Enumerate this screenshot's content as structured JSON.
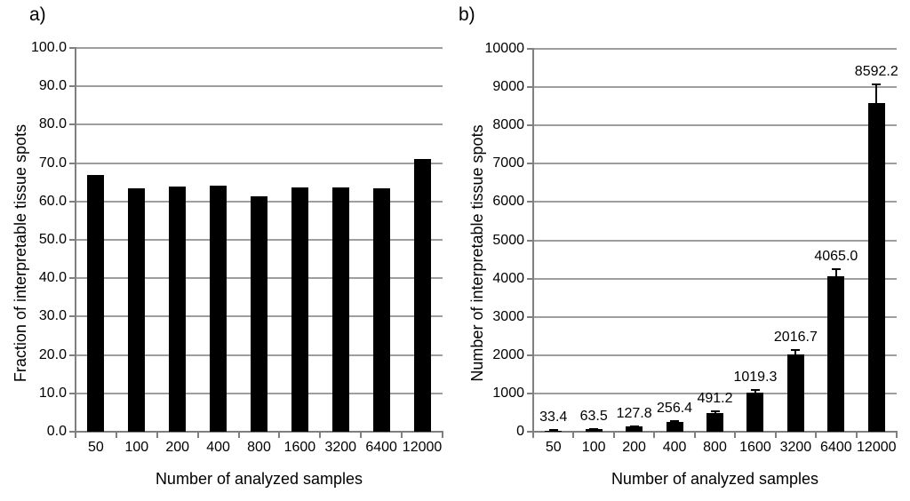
{
  "figure": {
    "background": "#ffffff",
    "text_color": "#000000",
    "grid_color": "#9e9e9e",
    "axis_color": "#7f7f7f"
  },
  "chart_data": [
    {
      "type": "bar",
      "panel_label": "a)",
      "categories": [
        "50",
        "100",
        "200",
        "400",
        "800",
        "1600",
        "3200",
        "6400",
        "12000"
      ],
      "values": [
        66.8,
        63.5,
        63.9,
        64.1,
        61.4,
        63.7,
        63.7,
        63.5,
        71.1
      ],
      "xlabel": "Number of analyzed samples",
      "ylabel": "Fraction of interpretable tissue spots",
      "ylim": [
        0,
        100
      ],
      "ytick_step": 10,
      "ytick_labels": [
        "0.0",
        "10.0",
        "20.0",
        "30.0",
        "40.0",
        "50.0",
        "60.0",
        "70.0",
        "80.0",
        "90.0",
        "100.0"
      ],
      "grid": true,
      "legend": "none",
      "bar_color": "#000000"
    },
    {
      "type": "bar",
      "panel_label": "b)",
      "categories": [
        "50",
        "100",
        "200",
        "400",
        "800",
        "1600",
        "3200",
        "6400",
        "12000"
      ],
      "values": [
        33.4,
        63.5,
        127.8,
        256.4,
        491.2,
        1019.3,
        2016.7,
        4065.0,
        8592.2
      ],
      "data_labels": [
        "33.4",
        "63.5",
        "127.8",
        "256.4",
        "491.2",
        "1019.3",
        "2016.7",
        "4065.0",
        "8592.2"
      ],
      "errors": [
        5,
        8,
        12,
        20,
        35,
        80,
        115,
        170,
        480
      ],
      "xlabel": "Number of analyzed samples",
      "ylabel": "Number of interpretable tissue spots",
      "ylim": [
        0,
        10000
      ],
      "ytick_step": 1000,
      "ytick_labels": [
        "0",
        "1000",
        "2000",
        "3000",
        "4000",
        "5000",
        "6000",
        "7000",
        "8000",
        "9000",
        "10000"
      ],
      "grid": true,
      "legend": "none",
      "bar_color": "#000000"
    }
  ]
}
